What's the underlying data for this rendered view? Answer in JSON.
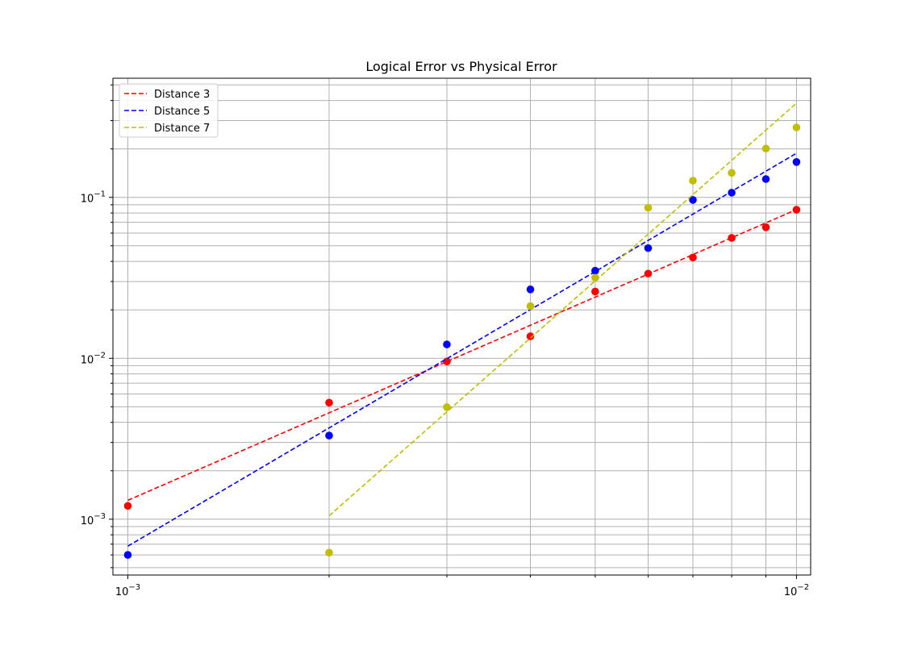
{
  "chart_data": {
    "type": "scatter",
    "title": "Logical Error vs Physical Error",
    "xlabel": "",
    "ylabel": "",
    "xscale": "log",
    "yscale": "log",
    "xlim": [
      0.00095,
      0.0105
    ],
    "ylim": [
      0.00045,
      0.55
    ],
    "grid": "both",
    "legend_position": "upper-left",
    "x_tick_labels": [
      {
        "value": 0.001,
        "base": "10",
        "exp": "−3"
      },
      {
        "value": 0.01,
        "base": "10",
        "exp": "−2"
      }
    ],
    "y_tick_labels": [
      {
        "value": 0.001,
        "base": "10",
        "exp": "−3"
      },
      {
        "value": 0.01,
        "base": "10",
        "exp": "−2"
      },
      {
        "value": 0.1,
        "base": "10",
        "exp": "−1"
      }
    ],
    "series": [
      {
        "name": "Distance 3",
        "color": "#ff0000",
        "line_style": "dashed",
        "points": [
          {
            "x": 0.001,
            "y": 0.00121
          },
          {
            "x": 0.002,
            "y": 0.0053
          },
          {
            "x": 0.003,
            "y": 0.00955
          },
          {
            "x": 0.004,
            "y": 0.0137
          },
          {
            "x": 0.005,
            "y": 0.026
          },
          {
            "x": 0.006,
            "y": 0.0336
          },
          {
            "x": 0.007,
            "y": 0.0423
          },
          {
            "x": 0.008,
            "y": 0.056
          },
          {
            "x": 0.009,
            "y": 0.0652
          },
          {
            "x": 0.01,
            "y": 0.0838
          }
        ],
        "fit": {
          "x": [
            0.001,
            0.01
          ],
          "y": [
            0.00131,
            0.084
          ]
        }
      },
      {
        "name": "Distance 5",
        "color": "#0000ff",
        "line_style": "dashed",
        "points": [
          {
            "x": 0.001,
            "y": 0.0006
          },
          {
            "x": 0.002,
            "y": 0.00331
          },
          {
            "x": 0.003,
            "y": 0.0122
          },
          {
            "x": 0.004,
            "y": 0.0268
          },
          {
            "x": 0.005,
            "y": 0.035
          },
          {
            "x": 0.006,
            "y": 0.0484
          },
          {
            "x": 0.007,
            "y": 0.0964
          },
          {
            "x": 0.008,
            "y": 0.107
          },
          {
            "x": 0.009,
            "y": 0.13
          },
          {
            "x": 0.01,
            "y": 0.166
          }
        ],
        "fit": {
          "x": [
            0.001,
            0.01
          ],
          "y": [
            0.00068,
            0.188
          ]
        }
      },
      {
        "name": "Distance 7",
        "color": "#bfbf00",
        "line_style": "dashed",
        "points": [
          {
            "x": 0.002,
            "y": 0.00062
          },
          {
            "x": 0.003,
            "y": 0.00497
          },
          {
            "x": 0.004,
            "y": 0.0211
          },
          {
            "x": 0.005,
            "y": 0.0317
          },
          {
            "x": 0.006,
            "y": 0.0862
          },
          {
            "x": 0.007,
            "y": 0.127
          },
          {
            "x": 0.008,
            "y": 0.142
          },
          {
            "x": 0.009,
            "y": 0.201
          },
          {
            "x": 0.01,
            "y": 0.272
          }
        ],
        "fit": {
          "x": [
            0.002,
            0.01
          ],
          "y": [
            0.00105,
            0.385
          ]
        }
      }
    ]
  }
}
